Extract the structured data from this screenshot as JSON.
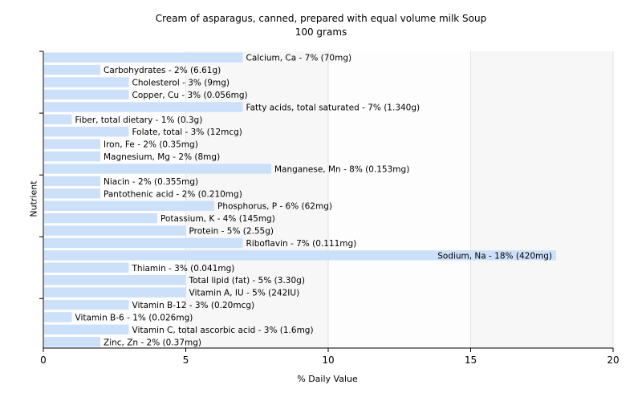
{
  "chart_data": {
    "type": "bar",
    "orientation": "horizontal",
    "title": "Cream of asparagus, canned, prepared with equal volume milk Soup",
    "subtitle": "100 grams",
    "xlabel": "% Daily Value",
    "ylabel": "Nutrient",
    "xlim": [
      0,
      20
    ],
    "xticks": [
      "0",
      "5",
      "10",
      "15",
      "20"
    ],
    "grid": "vertical",
    "bar_color": "#cce0fa",
    "categories": [
      "Calcium, Ca - 7% (70mg)",
      "Carbohydrates - 2% (6.61g)",
      "Cholesterol - 3% (9mg)",
      "Copper, Cu - 3% (0.056mg)",
      "Fatty acids, total saturated - 7% (1.340g)",
      "Fiber, total dietary - 1% (0.3g)",
      "Folate, total - 3% (12mcg)",
      "Iron, Fe - 2% (0.35mg)",
      "Magnesium, Mg - 2% (8mg)",
      "Manganese, Mn - 8% (0.153mg)",
      "Niacin - 2% (0.355mg)",
      "Pantothenic acid - 2% (0.210mg)",
      "Phosphorus, P - 6% (62mg)",
      "Potassium, K - 4% (145mg)",
      "Protein - 5% (2.55g)",
      "Riboflavin - 7% (0.111mg)",
      "Sodium, Na - 18% (420mg)",
      "Thiamin - 3% (0.041mg)",
      "Total lipid (fat) - 5% (3.30g)",
      "Vitamin A, IU - 5% (242IU)",
      "Vitamin B-12 - 3% (0.20mcg)",
      "Vitamin B-6 - 1% (0.026mg)",
      "Vitamin C, total ascorbic acid - 3% (1.6mg)",
      "Zinc, Zn - 2% (0.37mg)"
    ],
    "values": [
      7,
      2,
      3,
      3,
      7,
      1,
      3,
      2,
      2,
      8,
      2,
      2,
      6,
      4,
      5,
      7,
      18,
      3,
      5,
      5,
      3,
      1,
      3,
      2
    ]
  }
}
